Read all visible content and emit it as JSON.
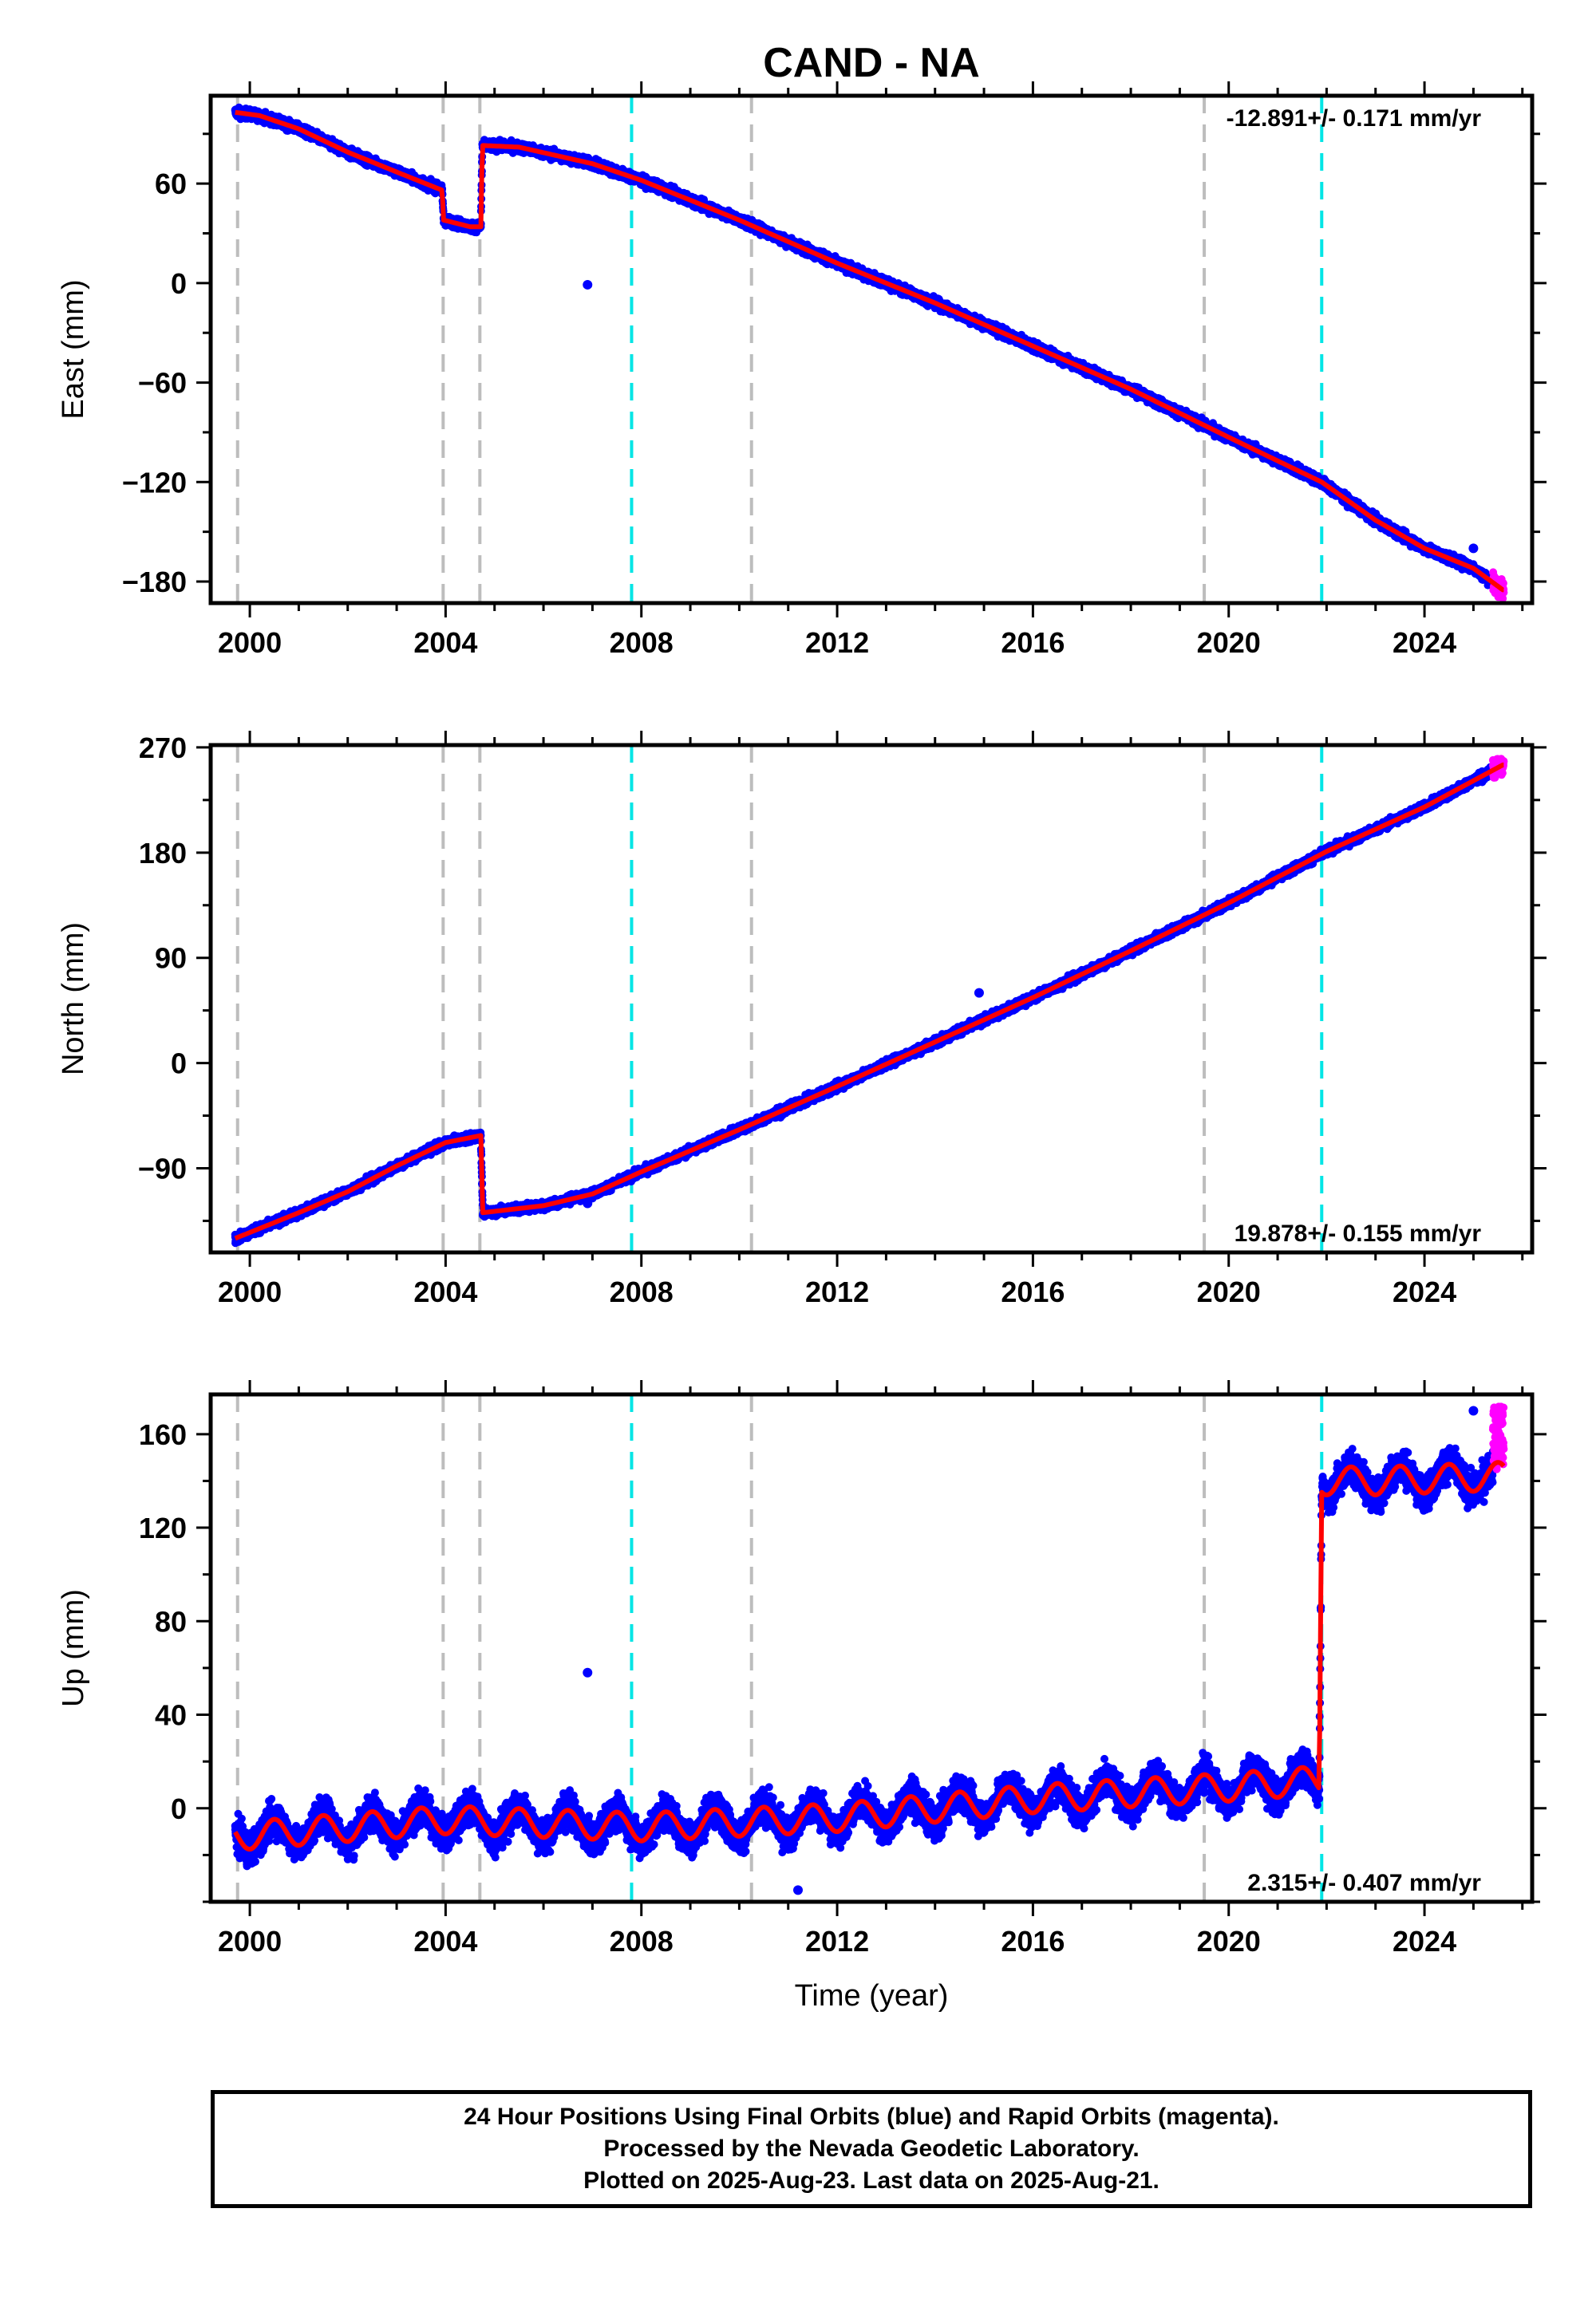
{
  "title": "CAND - NA",
  "xlabel": "Time (year)",
  "footer": {
    "line1": "24 Hour Positions Using Final Orbits (blue) and Rapid Orbits (magenta).",
    "line2": "Processed by the Nevada Geodetic Laboratory.",
    "line3": "Plotted on 2025-Aug-23. Last data on 2025-Aug-21."
  },
  "colors": {
    "final_orbits": "#0000ff",
    "rapid_orbits": "#ff00ff",
    "model_fit": "#ff0000",
    "equipment_change_line": "#bdbdbd",
    "earthquake_line": "#00e5e5"
  },
  "chart_data": [
    {
      "type": "scatter",
      "ylabel": "East (mm)",
      "rate_label": "-12.891+/- 0.171 mm/yr",
      "xlim": [
        1999.2,
        2026.2
      ],
      "ylim": [
        -193,
        113
      ],
      "x_ticks": [
        2000,
        2004,
        2008,
        2012,
        2016,
        2020,
        2024
      ],
      "y_ticks": [
        60,
        0,
        -60,
        -120,
        -180
      ],
      "y_tick_labels": [
        "60",
        "0",
        "−60",
        "−120",
        "−180"
      ],
      "vlines_gray": [
        1999.75,
        2003.95,
        2004.7,
        2010.25,
        2019.5
      ],
      "vlines_cyan": [
        2007.8,
        2021.9
      ],
      "fit_anchors": [
        [
          1999.7,
          103
        ],
        [
          2000.2,
          101
        ],
        [
          2001.0,
          93
        ],
        [
          2002.0,
          79
        ],
        [
          2003.0,
          67
        ],
        [
          2003.93,
          56
        ],
        [
          2003.96,
          38
        ],
        [
          2004.5,
          34
        ],
        [
          2004.72,
          34
        ],
        [
          2004.75,
          83
        ],
        [
          2005.5,
          82
        ],
        [
          2007.0,
          72
        ],
        [
          2008.0,
          62
        ],
        [
          2010.0,
          38
        ],
        [
          2012.0,
          12
        ],
        [
          2014.0,
          -12
        ],
        [
          2016.0,
          -38
        ],
        [
          2018.0,
          -64
        ],
        [
          2020.0,
          -93
        ],
        [
          2021.9,
          -120
        ],
        [
          2023.0,
          -143
        ],
        [
          2024.0,
          -160
        ],
        [
          2025.0,
          -172
        ],
        [
          2025.6,
          -185
        ]
      ],
      "rapid_range": [
        2025.4,
        2025.62
      ],
      "outliers": [
        [
          2006.9,
          -1
        ],
        [
          2025.0,
          -160
        ]
      ],
      "scatter_sd": 2.0
    },
    {
      "type": "scatter",
      "ylabel": "North (mm)",
      "rate_label": "19.878+/- 0.155 mm/yr",
      "xlim": [
        1999.2,
        2026.2
      ],
      "ylim": [
        -162,
        272
      ],
      "x_ticks": [
        2000,
        2004,
        2008,
        2012,
        2016,
        2020,
        2024
      ],
      "y_ticks": [
        270,
        180,
        90,
        0,
        -90
      ],
      "y_tick_labels": [
        "270",
        "180",
        "90",
        "0",
        "−90"
      ],
      "vlines_gray": [
        1999.75,
        2003.95,
        2004.7,
        2010.25,
        2019.5
      ],
      "vlines_cyan": [
        2007.8,
        2021.9
      ],
      "fit_anchors": [
        [
          1999.7,
          -150
        ],
        [
          2001.0,
          -128
        ],
        [
          2002.0,
          -110
        ],
        [
          2003.0,
          -88
        ],
        [
          2004.0,
          -68
        ],
        [
          2004.72,
          -62
        ],
        [
          2004.76,
          -128
        ],
        [
          2006.0,
          -122
        ],
        [
          2007.0,
          -112
        ],
        [
          2008.0,
          -93
        ],
        [
          2010.0,
          -57
        ],
        [
          2012.0,
          -20
        ],
        [
          2014.0,
          18
        ],
        [
          2016.0,
          56
        ],
        [
          2018.0,
          96
        ],
        [
          2020.0,
          137
        ],
        [
          2022.0,
          181
        ],
        [
          2024.0,
          219
        ],
        [
          2025.6,
          255
        ]
      ],
      "rapid_range": [
        2025.4,
        2025.62
      ],
      "outliers": [
        [
          2006.9,
          -120
        ],
        [
          2014.9,
          60
        ]
      ],
      "scatter_sd": 2.5
    },
    {
      "type": "scatter",
      "ylabel": "Up (mm)",
      "rate_label": "2.315+/- 0.407 mm/yr",
      "xlim": [
        1999.2,
        2026.2
      ],
      "ylim": [
        -40,
        177
      ],
      "x_ticks": [
        2000,
        2004,
        2008,
        2012,
        2016,
        2020,
        2024
      ],
      "y_ticks": [
        160,
        120,
        80,
        40,
        0
      ],
      "y_tick_labels": [
        "160",
        "120",
        "80",
        "40",
        "0"
      ],
      "vlines_gray": [
        1999.75,
        2003.95,
        2004.7,
        2010.25,
        2019.5
      ],
      "vlines_cyan": [
        2007.8,
        2021.9
      ],
      "fit_anchors": [
        [
          1999.7,
          -12
        ],
        [
          2004.0,
          -5
        ],
        [
          2008.0,
          -8
        ],
        [
          2012.0,
          -4
        ],
        [
          2016.0,
          4
        ],
        [
          2020.0,
          9
        ],
        [
          2021.85,
          12
        ],
        [
          2021.9,
          140
        ],
        [
          2023.0,
          140
        ],
        [
          2025.6,
          142
        ]
      ],
      "seasonal_amplitude": 6,
      "rapid_range": [
        2025.4,
        2025.62
      ],
      "rapid_y": [
        145,
        172
      ],
      "outliers": [
        [
          2006.9,
          58
        ],
        [
          2011.2,
          -35
        ],
        [
          2025.0,
          170
        ]
      ],
      "scatter_sd": 5.0
    }
  ]
}
